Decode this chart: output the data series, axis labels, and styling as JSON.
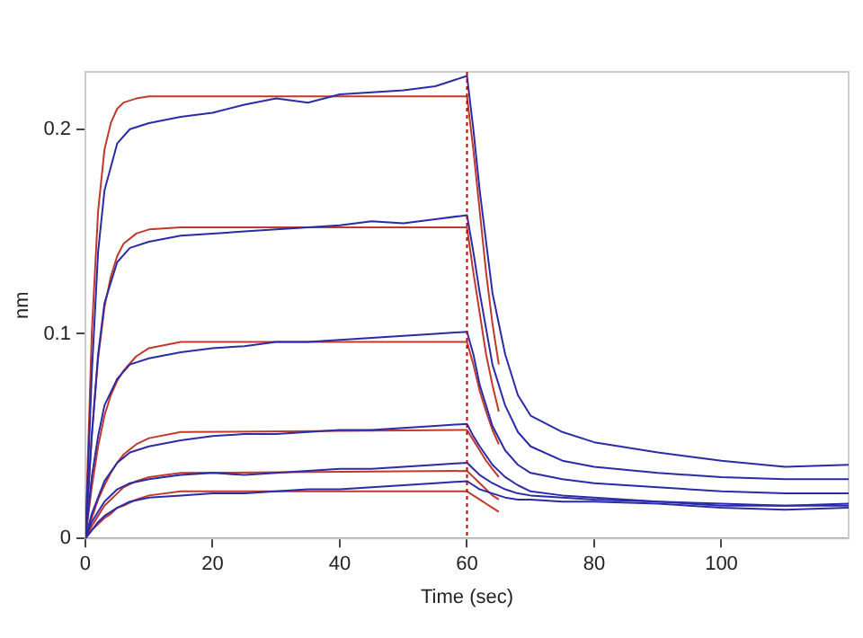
{
  "chart_data": {
    "type": "line",
    "xlabel": "Time (sec)",
    "ylabel": "nm",
    "xlim": [
      0,
      120
    ],
    "xticks": [
      0,
      20,
      40,
      60,
      80,
      100
    ],
    "ylim": [
      0,
      0.228
    ],
    "yticks": [
      0,
      0.1,
      0.2
    ],
    "grid": false,
    "legend": false,
    "marker": "none",
    "line_style": "solid",
    "ref_lines": [
      {
        "axis": "x",
        "value": 60,
        "label": null,
        "color": "#c00000",
        "line_style": "dotted"
      }
    ],
    "series": [
      {
        "color": "#2b2ba8",
        "x": [
          0,
          1,
          2,
          3,
          5,
          7,
          10,
          15,
          20,
          25,
          30,
          35,
          40,
          45,
          50,
          55,
          60,
          61,
          62,
          64,
          66,
          68,
          70,
          75,
          80,
          90,
          100,
          110,
          120
        ],
        "values": [
          0,
          0.08,
          0.14,
          0.17,
          0.193,
          0.2,
          0.203,
          0.206,
          0.208,
          0.212,
          0.215,
          0.213,
          0.217,
          0.218,
          0.219,
          0.221,
          0.226,
          0.2,
          0.17,
          0.12,
          0.09,
          0.07,
          0.06,
          0.052,
          0.047,
          0.042,
          0.038,
          0.035,
          0.036
        ]
      },
      {
        "color": "#2b2ba8",
        "x": [
          0,
          1,
          2,
          3,
          5,
          7,
          10,
          15,
          20,
          25,
          30,
          35,
          40,
          45,
          50,
          55,
          60,
          61,
          62,
          64,
          66,
          68,
          70,
          75,
          80,
          90,
          100,
          110,
          120
        ],
        "values": [
          0,
          0.05,
          0.09,
          0.115,
          0.135,
          0.142,
          0.145,
          0.148,
          0.149,
          0.15,
          0.151,
          0.152,
          0.153,
          0.155,
          0.154,
          0.156,
          0.158,
          0.14,
          0.12,
          0.085,
          0.065,
          0.052,
          0.045,
          0.038,
          0.035,
          0.032,
          0.03,
          0.029,
          0.029
        ]
      },
      {
        "color": "#2b2ba8",
        "x": [
          0,
          1,
          2,
          3,
          5,
          7,
          10,
          15,
          20,
          25,
          30,
          35,
          40,
          45,
          50,
          55,
          60,
          61,
          62,
          64,
          66,
          68,
          70,
          75,
          80,
          90,
          100,
          110,
          120
        ],
        "values": [
          0,
          0.03,
          0.05,
          0.065,
          0.078,
          0.085,
          0.088,
          0.091,
          0.093,
          0.094,
          0.096,
          0.096,
          0.097,
          0.098,
          0.099,
          0.1,
          0.101,
          0.09,
          0.075,
          0.055,
          0.043,
          0.036,
          0.032,
          0.029,
          0.027,
          0.025,
          0.023,
          0.022,
          0.022
        ]
      },
      {
        "color": "#2b2ba8",
        "x": [
          0,
          1,
          2,
          3,
          5,
          7,
          10,
          15,
          20,
          25,
          30,
          35,
          40,
          45,
          50,
          55,
          60,
          61,
          62,
          64,
          66,
          68,
          70,
          75,
          80,
          90,
          100,
          110,
          120
        ],
        "values": [
          0,
          0.012,
          0.02,
          0.028,
          0.037,
          0.042,
          0.045,
          0.048,
          0.05,
          0.051,
          0.051,
          0.052,
          0.053,
          0.053,
          0.054,
          0.055,
          0.056,
          0.05,
          0.045,
          0.036,
          0.03,
          0.026,
          0.023,
          0.021,
          0.02,
          0.018,
          0.017,
          0.016,
          0.017
        ]
      },
      {
        "color": "#2b2ba8",
        "x": [
          0,
          1,
          2,
          3,
          5,
          7,
          10,
          15,
          20,
          25,
          30,
          35,
          40,
          45,
          50,
          55,
          60,
          61,
          62,
          64,
          66,
          68,
          70,
          75,
          80,
          90,
          100,
          110,
          120
        ],
        "values": [
          0,
          0.008,
          0.013,
          0.018,
          0.024,
          0.027,
          0.029,
          0.031,
          0.032,
          0.031,
          0.032,
          0.033,
          0.034,
          0.034,
          0.035,
          0.036,
          0.037,
          0.034,
          0.031,
          0.027,
          0.024,
          0.022,
          0.021,
          0.02,
          0.019,
          0.018,
          0.016,
          0.016,
          0.016
        ]
      },
      {
        "color": "#2b2ba8",
        "x": [
          0,
          1,
          2,
          3,
          5,
          7,
          10,
          15,
          20,
          25,
          30,
          35,
          40,
          45,
          50,
          55,
          60,
          61,
          62,
          64,
          66,
          68,
          70,
          75,
          80,
          90,
          100,
          110,
          120
        ],
        "values": [
          0,
          0.004,
          0.008,
          0.011,
          0.015,
          0.018,
          0.02,
          0.021,
          0.022,
          0.022,
          0.023,
          0.024,
          0.024,
          0.025,
          0.026,
          0.027,
          0.028,
          0.026,
          0.024,
          0.022,
          0.02,
          0.019,
          0.019,
          0.018,
          0.018,
          0.017,
          0.015,
          0.014,
          0.015
        ]
      },
      {
        "color": "#c0392b",
        "x": [
          0,
          1,
          2,
          3,
          4,
          5,
          6,
          8,
          10,
          15,
          60,
          61,
          62,
          63,
          64,
          65
        ],
        "values": [
          0,
          0.1,
          0.16,
          0.19,
          0.203,
          0.21,
          0.213,
          0.215,
          0.216,
          0.216,
          0.216,
          0.19,
          0.16,
          0.13,
          0.105,
          0.085
        ]
      },
      {
        "color": "#c0392b",
        "x": [
          0,
          1,
          2,
          3,
          4,
          5,
          6,
          8,
          10,
          15,
          60,
          61,
          62,
          63,
          64,
          65
        ],
        "values": [
          0,
          0.05,
          0.088,
          0.113,
          0.128,
          0.138,
          0.144,
          0.149,
          0.151,
          0.152,
          0.152,
          0.13,
          0.11,
          0.09,
          0.075,
          0.062
        ]
      },
      {
        "color": "#c0392b",
        "x": [
          0,
          1,
          2,
          3,
          4,
          5,
          6,
          8,
          10,
          15,
          60,
          61,
          62,
          63,
          64,
          65
        ],
        "values": [
          0,
          0.025,
          0.045,
          0.06,
          0.07,
          0.077,
          0.082,
          0.089,
          0.093,
          0.096,
          0.096,
          0.085,
          0.072,
          0.062,
          0.053,
          0.046
        ]
      },
      {
        "color": "#c0392b",
        "x": [
          0,
          1,
          2,
          3,
          4,
          5,
          6,
          8,
          10,
          15,
          60,
          61,
          62,
          63,
          64,
          65
        ],
        "values": [
          0,
          0.01,
          0.019,
          0.026,
          0.032,
          0.037,
          0.041,
          0.046,
          0.049,
          0.052,
          0.053,
          0.048,
          0.043,
          0.038,
          0.034,
          0.03
        ]
      },
      {
        "color": "#c0392b",
        "x": [
          0,
          1,
          2,
          3,
          4,
          5,
          6,
          8,
          10,
          15,
          60,
          61,
          62,
          63,
          64,
          65
        ],
        "values": [
          0,
          0.006,
          0.011,
          0.016,
          0.019,
          0.022,
          0.025,
          0.028,
          0.03,
          0.032,
          0.033,
          0.03,
          0.027,
          0.024,
          0.021,
          0.019
        ]
      },
      {
        "color": "#c0392b",
        "x": [
          0,
          1,
          2,
          3,
          4,
          5,
          6,
          8,
          10,
          15,
          60,
          61,
          62,
          63,
          64,
          65
        ],
        "values": [
          0,
          0.004,
          0.007,
          0.01,
          0.012,
          0.015,
          0.016,
          0.019,
          0.021,
          0.023,
          0.023,
          0.021,
          0.019,
          0.017,
          0.015,
          0.013
        ]
      }
    ]
  }
}
